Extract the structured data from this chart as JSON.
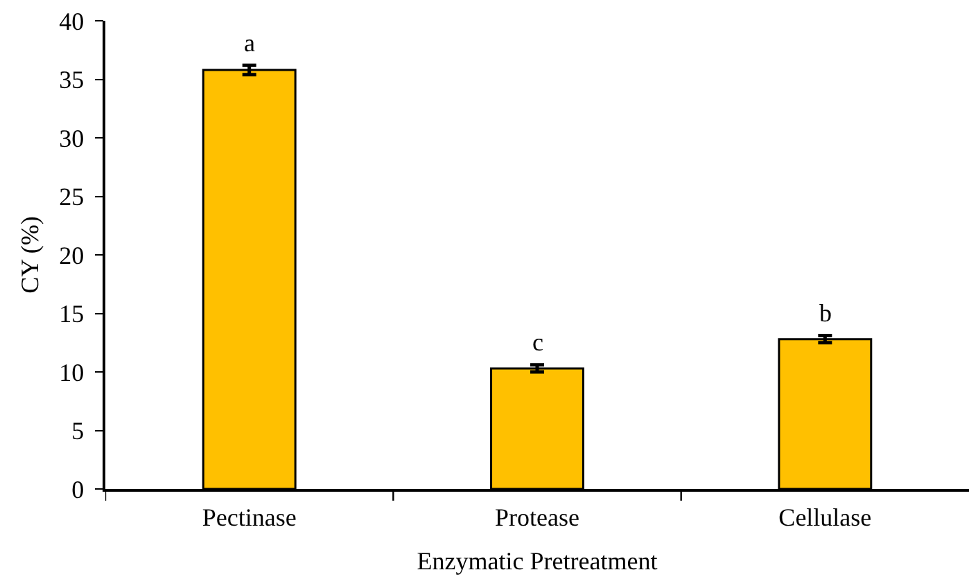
{
  "chart_data": {
    "type": "bar",
    "xlabel": "Enzymatic Pretreatment",
    "ylabel": "CY (%)",
    "categories": [
      "Pectinase",
      "Protease",
      "Cellulase"
    ],
    "values": [
      35.8,
      10.3,
      12.8
    ],
    "errors": [
      0.4,
      0.3,
      0.3
    ],
    "color": "#ffc000",
    "ylim": [
      0,
      40
    ],
    "yticks": [
      0,
      5,
      10,
      15,
      20,
      25,
      30,
      35,
      40
    ],
    "annotations": [
      {
        "text": "a",
        "x": "Pectinase",
        "y": 35.8
      },
      {
        "text": "c",
        "x": "Protease",
        "y": 10.3
      },
      {
        "text": "b",
        "x": "Cellulase",
        "y": 12.8
      }
    ]
  }
}
